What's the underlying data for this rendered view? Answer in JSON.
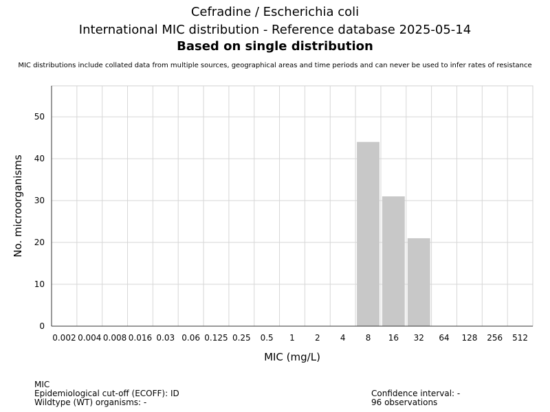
{
  "chart_data": {
    "type": "bar",
    "title": "Cefradine / Escherichia coli",
    "subtitle": "International MIC distribution - Reference database 2025-05-14",
    "subtitle2": "Based on single distribution",
    "note": "MIC distributions include collated data from multiple sources, geographical areas and time periods and can never be used to infer rates of resistance",
    "categories": [
      "0.002",
      "0.004",
      "0.008",
      "0.016",
      "0.03",
      "0.06",
      "0.125",
      "0.25",
      "0.5",
      "1",
      "2",
      "4",
      "8",
      "16",
      "32",
      "64",
      "128",
      "256",
      "512"
    ],
    "values": [
      0,
      0,
      0,
      0,
      0,
      0,
      0,
      0,
      0,
      0,
      0,
      0,
      44,
      31,
      21,
      0,
      0,
      0,
      0
    ],
    "xlabel": "MIC (mg/L)",
    "ylabel": "No. microorganisms",
    "ylim": [
      0,
      57.4
    ],
    "yticks": [
      0,
      10,
      20,
      30,
      40,
      50
    ],
    "grid": true,
    "bar_color": "#c8c8c8"
  },
  "footer": {
    "left": [
      "MIC",
      "Epidemiological cut-off (ECOFF): ID",
      "Wildtype (WT) organisms:  -"
    ],
    "right": [
      "Confidence interval: -",
      "96 observations"
    ]
  }
}
